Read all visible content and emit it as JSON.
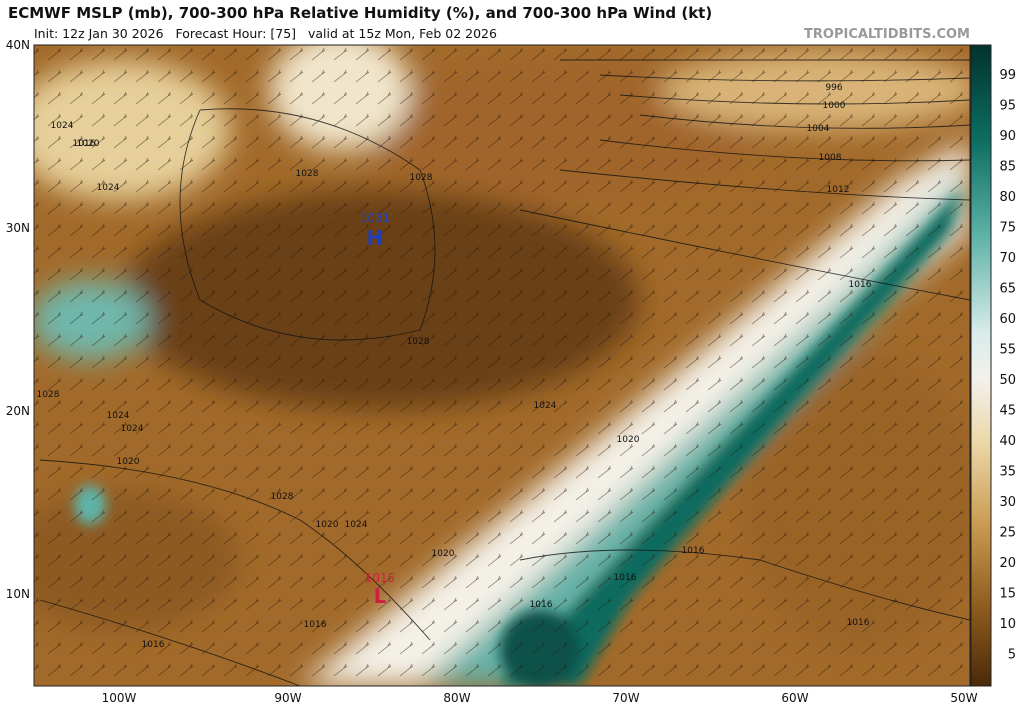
{
  "header": {
    "title": "ECMWF MSLP (mb), 700-300 hPa Relative Humidity (%), and 700-300 hPa Wind (kt)",
    "subtitle": "Init: 12z Jan 30 2026   Forecast Hour: [75]   valid at 15z Mon, Feb 02 2026",
    "watermark": "TROPICALTIDBITS.COM"
  },
  "map": {
    "lat_labels": [
      "40N",
      "30N",
      "20N",
      "10N"
    ],
    "lon_labels": [
      "100W",
      "90W",
      "80W",
      "70W",
      "60W",
      "50W"
    ],
    "centers": [
      {
        "value": "1031",
        "symbol": "H"
      },
      {
        "value": "1015",
        "symbol": "L"
      }
    ],
    "isobar_labels": [
      "1024",
      "1016",
      "1020",
      "1024",
      "1028",
      "1028",
      "996",
      "1000",
      "1004",
      "1008",
      "1012",
      "1016",
      "1028",
      "1024",
      "1024",
      "1028",
      "1024",
      "1020",
      "1028",
      "1020",
      "1024",
      "1020",
      "1020",
      "1016",
      "1016",
      "1016",
      "1016",
      "1016",
      "1016"
    ]
  },
  "colorbar": {
    "labels": [
      "99",
      "95",
      "90",
      "85",
      "80",
      "75",
      "70",
      "65",
      "60",
      "55",
      "50",
      "45",
      "40",
      "35",
      "30",
      "25",
      "20",
      "15",
      "10",
      "5"
    ]
  }
}
